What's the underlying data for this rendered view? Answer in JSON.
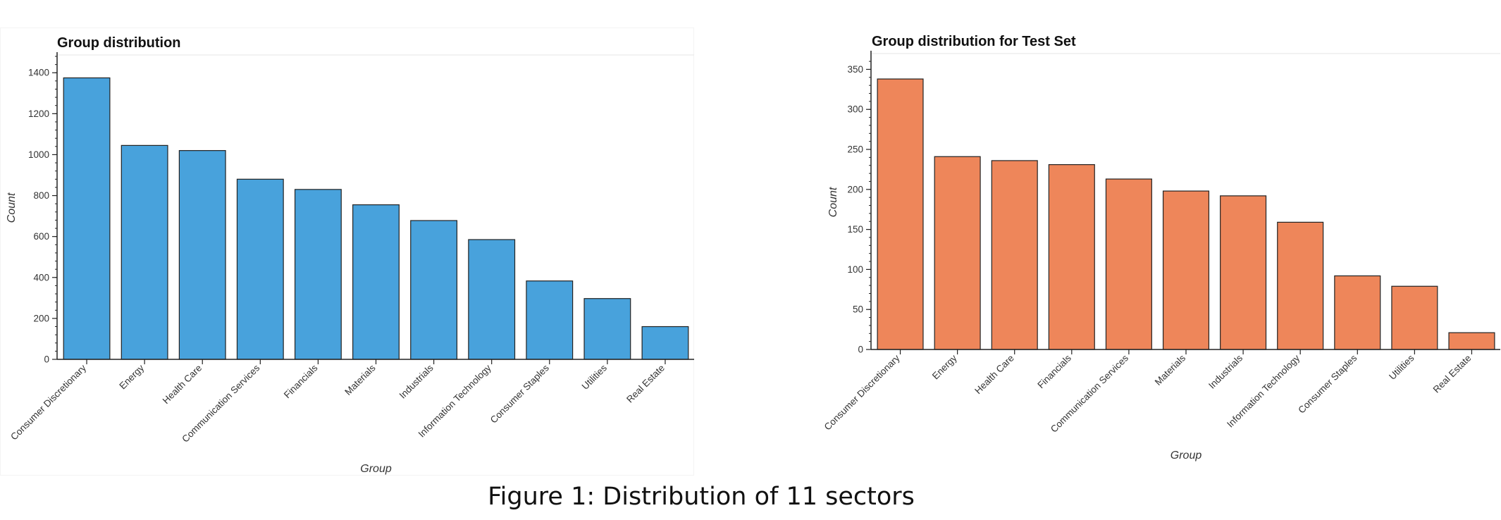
{
  "chart_data": [
    {
      "type": "bar",
      "title": "Group distribution",
      "xlabel": "Group",
      "ylabel": "Count",
      "categories": [
        "Consumer Discretionary",
        "Energy",
        "Health Care",
        "Communication Services",
        "Financials",
        "Materials",
        "Industrials",
        "Information Technology",
        "Consumer Staples",
        "Utilities",
        "Real Estate"
      ],
      "values": [
        1375,
        1045,
        1020,
        880,
        830,
        755,
        678,
        585,
        383,
        297,
        160
      ],
      "ylim": [
        0,
        1480
      ],
      "yticks": [
        0,
        200,
        400,
        600,
        800,
        1000,
        1200,
        1400
      ],
      "color": "#48a2dc",
      "grid": false
    },
    {
      "type": "bar",
      "title": "Group distribution for Test Set",
      "xlabel": "Group",
      "ylabel": "Count",
      "categories": [
        "Consumer Discretionary",
        "Energy",
        "Health Care",
        "Financials",
        "Communication Services",
        "Materials",
        "Industrials",
        "Information Technology",
        "Consumer Staples",
        "Utilities",
        "Real Estate"
      ],
      "values": [
        338,
        241,
        236,
        231,
        213,
        198,
        192,
        159,
        92,
        79,
        21
      ],
      "ylim": [
        0,
        368
      ],
      "yticks": [
        0,
        50,
        100,
        150,
        200,
        250,
        300,
        350
      ],
      "color": "#ee865a",
      "grid": false
    }
  ],
  "caption": "Figure 1: Distribution of 11 sectors"
}
